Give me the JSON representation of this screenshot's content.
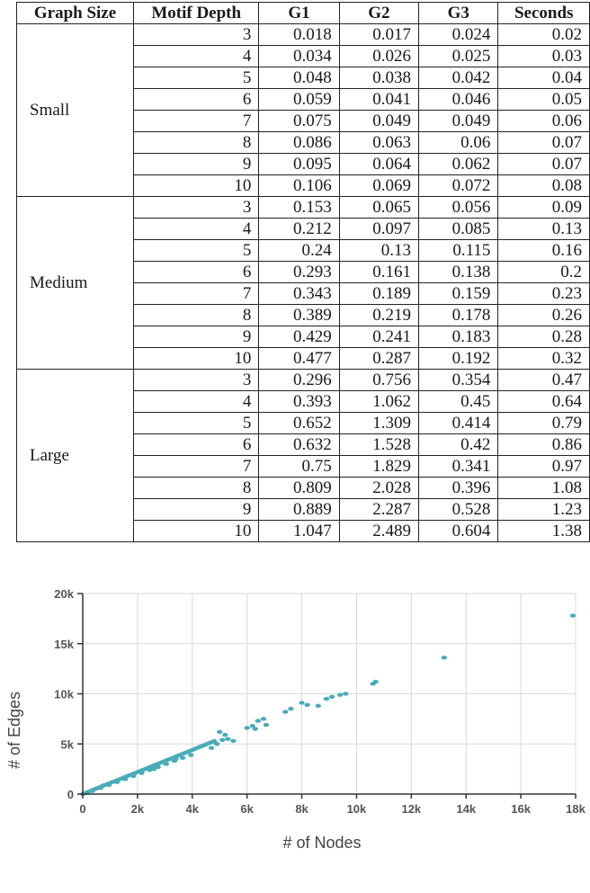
{
  "table": {
    "headers": [
      "Graph Size",
      "Motif Depth",
      "G1",
      "G2",
      "G3",
      "Seconds"
    ],
    "groups": [
      {
        "name": "Small",
        "rows": [
          [
            "3",
            "0.018",
            "0.017",
            "0.024",
            "0.02"
          ],
          [
            "4",
            "0.034",
            "0.026",
            "0.025",
            "0.03"
          ],
          [
            "5",
            "0.048",
            "0.038",
            "0.042",
            "0.04"
          ],
          [
            "6",
            "0.059",
            "0.041",
            "0.046",
            "0.05"
          ],
          [
            "7",
            "0.075",
            "0.049",
            "0.049",
            "0.06"
          ],
          [
            "8",
            "0.086",
            "0.063",
            "0.06",
            "0.07"
          ],
          [
            "9",
            "0.095",
            "0.064",
            "0.062",
            "0.07"
          ],
          [
            "10",
            "0.106",
            "0.069",
            "0.072",
            "0.08"
          ]
        ]
      },
      {
        "name": "Medium",
        "rows": [
          [
            "3",
            "0.153",
            "0.065",
            "0.056",
            "0.09"
          ],
          [
            "4",
            "0.212",
            "0.097",
            "0.085",
            "0.13"
          ],
          [
            "5",
            "0.24",
            "0.13",
            "0.115",
            "0.16"
          ],
          [
            "6",
            "0.293",
            "0.161",
            "0.138",
            "0.2"
          ],
          [
            "7",
            "0.343",
            "0.189",
            "0.159",
            "0.23"
          ],
          [
            "8",
            "0.389",
            "0.219",
            "0.178",
            "0.26"
          ],
          [
            "9",
            "0.429",
            "0.241",
            "0.183",
            "0.28"
          ],
          [
            "10",
            "0.477",
            "0.287",
            "0.192",
            "0.32"
          ]
        ]
      },
      {
        "name": "Large",
        "rows": [
          [
            "3",
            "0.296",
            "0.756",
            "0.354",
            "0.47"
          ],
          [
            "4",
            "0.393",
            "1.062",
            "0.45",
            "0.64"
          ],
          [
            "5",
            "0.652",
            "1.309",
            "0.414",
            "0.79"
          ],
          [
            "6",
            "0.632",
            "1.528",
            "0.42",
            "0.86"
          ],
          [
            "7",
            "0.75",
            "1.829",
            "0.341",
            "0.97"
          ],
          [
            "8",
            "0.809",
            "2.028",
            "0.396",
            "1.08"
          ],
          [
            "9",
            "0.889",
            "2.287",
            "0.528",
            "1.23"
          ],
          [
            "10",
            "1.047",
            "2.489",
            "0.604",
            "1.38"
          ]
        ]
      }
    ]
  },
  "chart_data": {
    "type": "scatter",
    "title": "",
    "xlabel": "# of Nodes",
    "ylabel": "# of Edges",
    "xlim": [
      0,
      18000
    ],
    "ylim": [
      0,
      20000
    ],
    "x_ticks": [
      0,
      2000,
      4000,
      6000,
      8000,
      10000,
      12000,
      14000,
      16000,
      18000
    ],
    "x_tick_labels": [
      "0",
      "2k",
      "4k",
      "6k",
      "8k",
      "10k",
      "12k",
      "14k",
      "16k",
      "18k"
    ],
    "y_ticks": [
      0,
      5000,
      10000,
      15000,
      20000
    ],
    "y_tick_labels": [
      "0",
      "5k",
      "10k",
      "15k",
      "20k"
    ],
    "grid": true,
    "point_color": "#4aabb9",
    "points": [
      [
        0,
        0
      ],
      [
        100,
        120
      ],
      [
        200,
        230
      ],
      [
        300,
        330
      ],
      [
        400,
        450
      ],
      [
        500,
        560
      ],
      [
        600,
        670
      ],
      [
        700,
        780
      ],
      [
        800,
        900
      ],
      [
        900,
        1000
      ],
      [
        1000,
        1100
      ],
      [
        1100,
        1220
      ],
      [
        1200,
        1320
      ],
      [
        1300,
        1430
      ],
      [
        1400,
        1540
      ],
      [
        1500,
        1650
      ],
      [
        1600,
        1760
      ],
      [
        1700,
        1870
      ],
      [
        1800,
        1980
      ],
      [
        1900,
        2090
      ],
      [
        2000,
        2200
      ],
      [
        2100,
        2300
      ],
      [
        2200,
        2420
      ],
      [
        2300,
        2530
      ],
      [
        2400,
        2640
      ],
      [
        2500,
        2750
      ],
      [
        2600,
        2860
      ],
      [
        2700,
        2970
      ],
      [
        2800,
        3080
      ],
      [
        2900,
        3190
      ],
      [
        3000,
        3300
      ],
      [
        3100,
        3420
      ],
      [
        3200,
        3520
      ],
      [
        3300,
        3630
      ],
      [
        3400,
        3740
      ],
      [
        3500,
        3850
      ],
      [
        3600,
        3960
      ],
      [
        3700,
        4070
      ],
      [
        3800,
        4180
      ],
      [
        3900,
        4290
      ],
      [
        4000,
        4400
      ],
      [
        4100,
        4510
      ],
      [
        4200,
        4620
      ],
      [
        4300,
        4730
      ],
      [
        4400,
        4840
      ],
      [
        4500,
        4950
      ],
      [
        4600,
        5060
      ],
      [
        4700,
        5170
      ],
      [
        4800,
        5280
      ],
      [
        150,
        100
      ],
      [
        350,
        300
      ],
      [
        650,
        600
      ],
      [
        950,
        900
      ],
      [
        1250,
        1200
      ],
      [
        1550,
        1500
      ],
      [
        1850,
        1800
      ],
      [
        2150,
        2100
      ],
      [
        2450,
        2400
      ],
      [
        2750,
        2700
      ],
      [
        3050,
        3000
      ],
      [
        3350,
        3300
      ],
      [
        3650,
        3600
      ],
      [
        3950,
        3900
      ],
      [
        2600,
        2500
      ],
      [
        3000,
        3100
      ],
      [
        3400,
        3500
      ],
      [
        4700,
        4600
      ],
      [
        4900,
        5000
      ],
      [
        5100,
        5400
      ],
      [
        5200,
        5900
      ],
      [
        5000,
        6200
      ],
      [
        5300,
        5500
      ],
      [
        5500,
        5300
      ],
      [
        6000,
        6600
      ],
      [
        6200,
        6800
      ],
      [
        6400,
        7300
      ],
      [
        6600,
        7500
      ],
      [
        6300,
        6500
      ],
      [
        6700,
        6900
      ],
      [
        7400,
        8200
      ],
      [
        7600,
        8500
      ],
      [
        8000,
        9100
      ],
      [
        8200,
        8900
      ],
      [
        8600,
        8800
      ],
      [
        8900,
        9500
      ],
      [
        9100,
        9700
      ],
      [
        9400,
        9900
      ],
      [
        9600,
        10000
      ],
      [
        10600,
        11000
      ],
      [
        10700,
        11200
      ],
      [
        13200,
        13600
      ],
      [
        17900,
        17800
      ]
    ]
  }
}
